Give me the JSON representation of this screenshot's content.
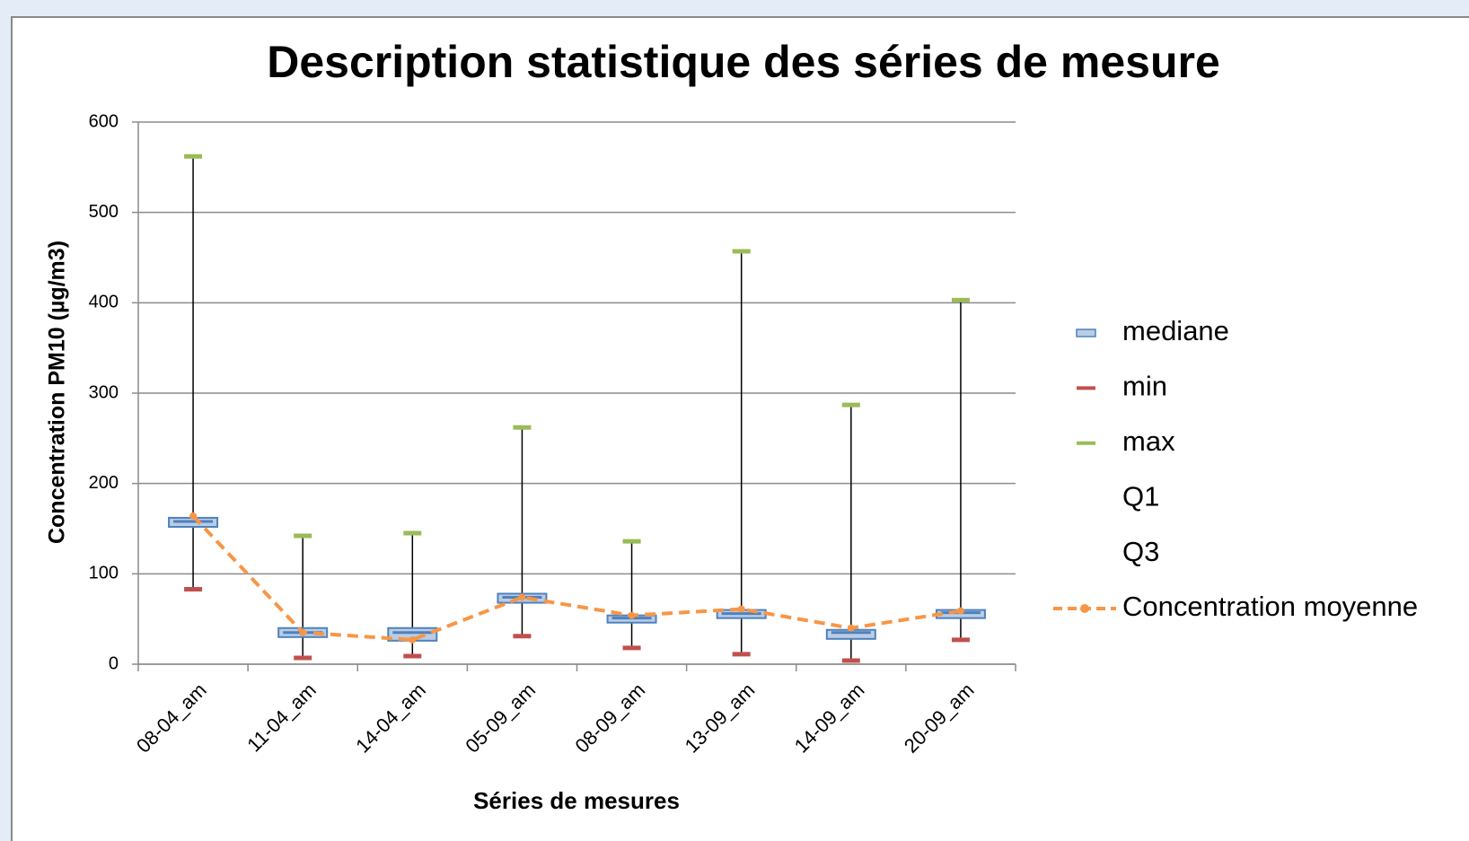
{
  "chart_data": {
    "type": "boxplot",
    "title": "Description statistique des séries de mesure",
    "x_label": "Séries de mesures",
    "y_label": "Concentration PM10 (µg/m3)",
    "categories": [
      "08-04_am",
      "11-04_am",
      "14-04_am",
      "05-09_am",
      "08-09_am",
      "13-09_am",
      "14-09_am",
      "20-09_am"
    ],
    "series": [
      {
        "name": "mediane",
        "color": "#4f81bd",
        "style": "box",
        "values": [
          158,
          35,
          35,
          74,
          51,
          56,
          35,
          57
        ]
      },
      {
        "name": "min",
        "color": "#c0504d",
        "style": "dash",
        "values": [
          83,
          7,
          9,
          31,
          18,
          11,
          4,
          27
        ]
      },
      {
        "name": "max",
        "color": "#9bbb59",
        "style": "dash",
        "values": [
          562,
          142,
          145,
          262,
          136,
          457,
          287,
          403
        ]
      },
      {
        "name": "Q1",
        "style": "none",
        "values": [
          152,
          30,
          26,
          68,
          46,
          51,
          28,
          51
        ]
      },
      {
        "name": "Q3",
        "style": "none",
        "values": [
          162,
          40,
          40,
          78,
          54,
          60,
          38,
          60
        ]
      },
      {
        "name": "Concentration moyenne",
        "color": "#f79646",
        "style": "dashed-line",
        "values": [
          164,
          35,
          27,
          74,
          54,
          61,
          40,
          59
        ]
      }
    ],
    "ylim": [
      0,
      600
    ],
    "yticks": [
      0,
      100,
      200,
      300,
      400,
      500,
      600
    ],
    "grid": true,
    "legend": "right"
  }
}
